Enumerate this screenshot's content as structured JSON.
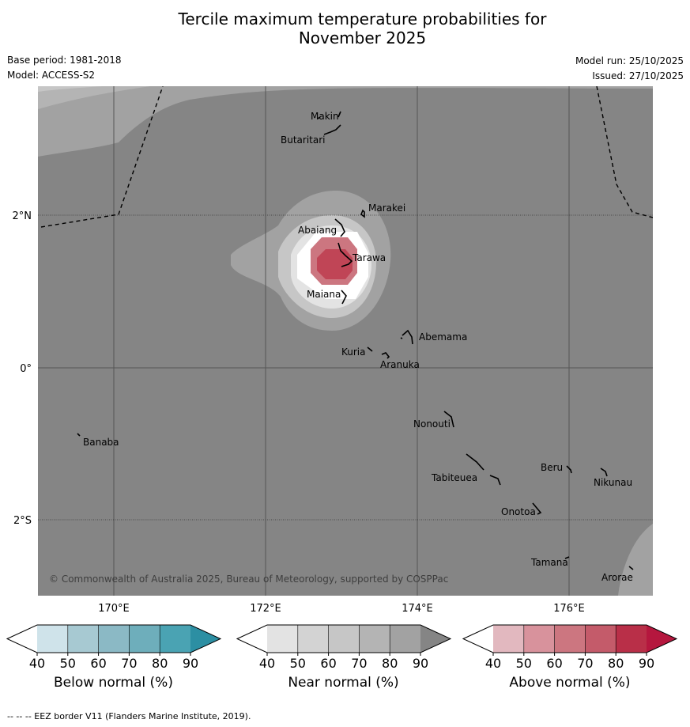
{
  "title_line1": "Tercile maximum temperature probabilities for",
  "title_line2": "November 2025",
  "base_period": "Base period: 1981-2018",
  "model": "Model: ACCESS-S2",
  "model_run": "Model run: 25/10/2025",
  "issued": "Issued: 27/10/2025",
  "copyright": "© Commonwealth of Australia 2025, Bureau of Meteorology, supported by COSPPac",
  "lat_labels": [
    "2°N",
    "0°",
    "2°S"
  ],
  "lon_labels": [
    "170°E",
    "172°E",
    "174°E",
    "176°E"
  ],
  "places": {
    "makin": "Makin",
    "butaritari": "Butaritari",
    "marakei": "Marakei",
    "abaiang": "Abaiang",
    "tarawa": "Tarawa",
    "maiana": "Maiana",
    "abemama": "Abemama",
    "kuria": "Kuria",
    "aranuka": "Aranuka",
    "nonouti": "Nonouti",
    "banaba": "Banaba",
    "tabiteuea": "Tabiteuea",
    "beru": "Beru",
    "nikunau": "Nikunau",
    "onotoa": "Onotoa",
    "tamana": "Tamana",
    "arorae": "Arorae"
  },
  "colorbars": {
    "below": {
      "label": "Below normal (%)",
      "ticks": [
        "40",
        "50",
        "60",
        "70",
        "80",
        "90"
      ],
      "colors": [
        "#ffffff",
        "#cfe3ea",
        "#a7c9d2",
        "#8bb9c5",
        "#6eaebb",
        "#4aa3b3",
        "#2c8fa3"
      ]
    },
    "near": {
      "label": "Near normal (%)",
      "ticks": [
        "40",
        "50",
        "60",
        "70",
        "80",
        "90"
      ],
      "colors": [
        "#ffffff",
        "#e3e3e3",
        "#d3d3d3",
        "#c6c6c6",
        "#b4b4b4",
        "#a2a2a2",
        "#858585"
      ]
    },
    "above": {
      "label": "Above normal (%)",
      "ticks": [
        "40",
        "50",
        "60",
        "70",
        "80",
        "90"
      ],
      "colors": [
        "#ffffff",
        "#e2b8bf",
        "#d8929c",
        "#cc7680",
        "#c45b6a",
        "#b92f48",
        "#b5173e"
      ]
    }
  },
  "footnote": "--  --  -- EEZ border V11 (Flanders Marine Institute, 2019)."
}
